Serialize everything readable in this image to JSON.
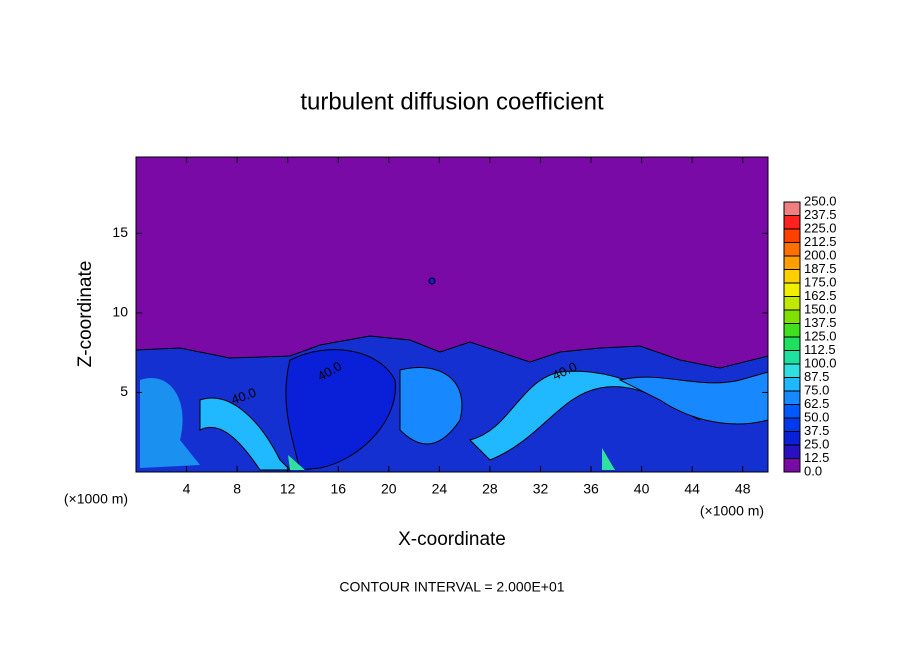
{
  "chart_data": {
    "type": "contour",
    "title": "turbulent diffusion coefficient",
    "x_label": "X-coordinate",
    "y_label": "Z-coordinate",
    "x_unit": "(×1000 m)",
    "y_unit": "(×1000 m)",
    "footnote": "CONTOUR INTERVAL = 2.000E+01",
    "contour_labels": [
      "40.0",
      "40.0",
      "40.0"
    ],
    "xlim": [
      0,
      50
    ],
    "ylim": [
      0,
      19.8
    ],
    "xticks": [
      4,
      8,
      12,
      16,
      20,
      24,
      28,
      32,
      36,
      40,
      44,
      48
    ],
    "yticks": [
      5,
      10,
      15
    ],
    "colorbar": {
      "levels": [
        {
          "value": 0,
          "label": "0.0"
        },
        {
          "value": 12.5,
          "label": "12.5"
        },
        {
          "value": 25,
          "label": "25.0"
        },
        {
          "value": 37.5,
          "label": "37.5"
        },
        {
          "value": 50,
          "label": "50.0"
        },
        {
          "value": 62.5,
          "label": "62.5"
        },
        {
          "value": 75,
          "label": "75.0"
        },
        {
          "value": 87.5,
          "label": "87.5"
        },
        {
          "value": 100,
          "label": "100.0"
        },
        {
          "value": 112.5,
          "label": "112.5"
        },
        {
          "value": 125,
          "label": "125.0"
        },
        {
          "value": 137.5,
          "label": "137.5"
        },
        {
          "value": 150,
          "label": "150.0"
        },
        {
          "value": 162.5,
          "label": "162.5"
        },
        {
          "value": 175,
          "label": "175.0"
        },
        {
          "value": 187.5,
          "label": "187.5"
        },
        {
          "value": 200,
          "label": "200.0"
        },
        {
          "value": 212.5,
          "label": "212.5"
        },
        {
          "value": 225,
          "label": "225.0"
        },
        {
          "value": 237.5,
          "label": "237.5"
        },
        {
          "value": 250,
          "label": "250.0"
        }
      ],
      "colors": [
        "#7a0aa6",
        "#2a10c0",
        "#0a20d8",
        "#0038ee",
        "#0058ff",
        "#1888ff",
        "#20b8ff",
        "#30e0e0",
        "#20e0a0",
        "#20e060",
        "#40e020",
        "#80e000",
        "#c0e800",
        "#f0f000",
        "#ffd000",
        "#ffa000",
        "#ff7000",
        "#ff4000",
        "#ff2020",
        "#f08080"
      ]
    }
  }
}
